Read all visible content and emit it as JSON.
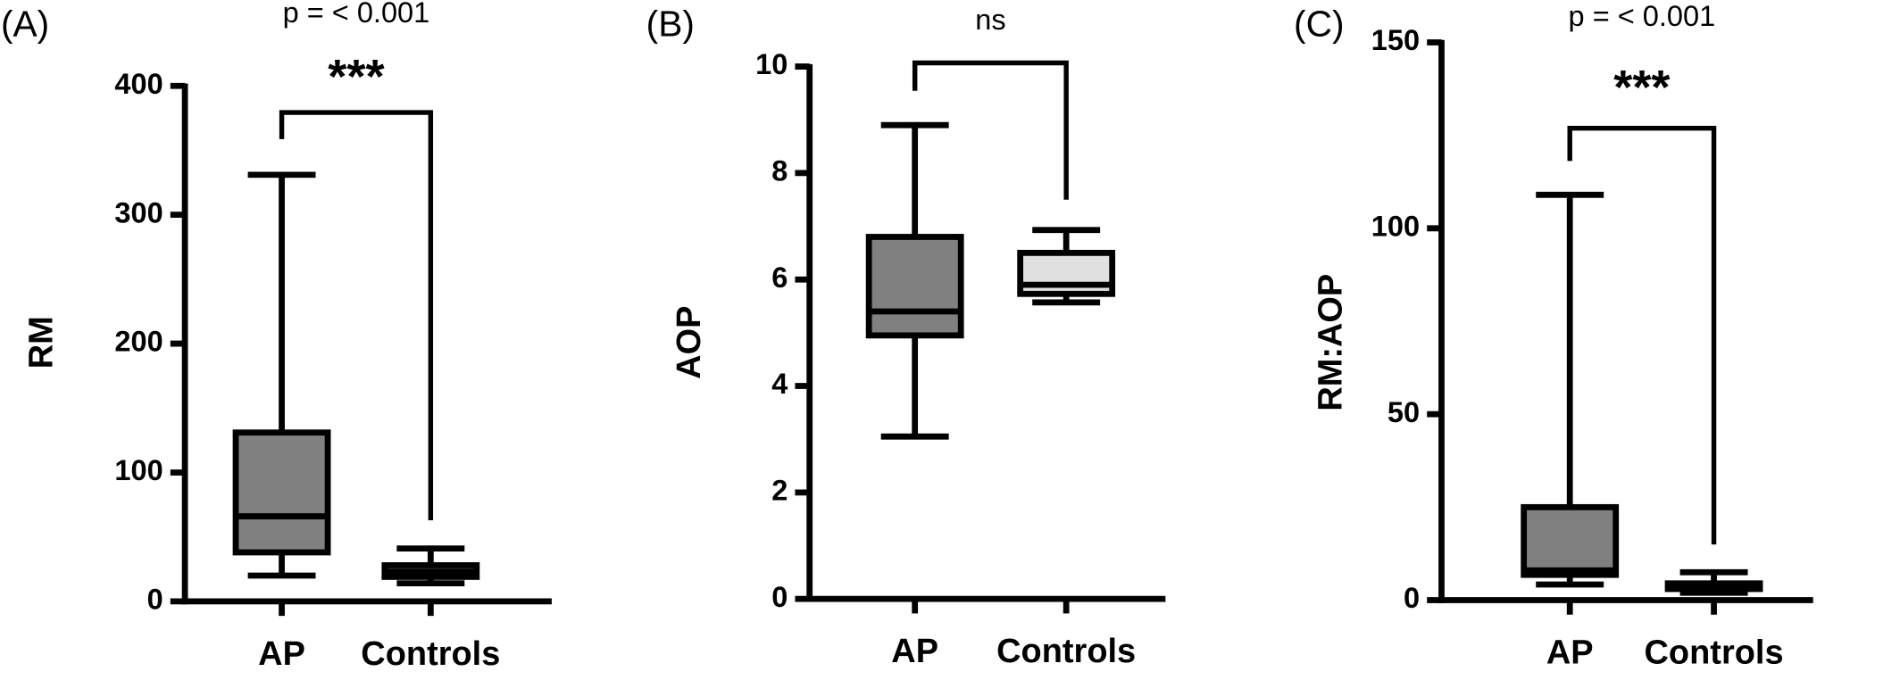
{
  "chart_data": [
    {
      "type": "box",
      "panel": "(A)",
      "annotation": "p = < 0.001",
      "significance": "***",
      "ylabel": "RM",
      "categories": [
        "AP",
        "Controls"
      ],
      "boxes": [
        {
          "min": 20,
          "q1": 38,
          "median": 66,
          "q3": 131,
          "max": 331,
          "color": "#808080"
        },
        {
          "min": 14,
          "q1": 19,
          "median": 23,
          "q3": 28,
          "max": 41,
          "color": "#808080"
        }
      ],
      "ylim": [
        0,
        400
      ],
      "yticks": [
        0,
        100,
        200,
        300,
        400
      ]
    },
    {
      "type": "box",
      "panel": "(B)",
      "annotation": "ns",
      "ylabel": "AOP",
      "categories": [
        "AP",
        "Controls"
      ],
      "boxes": [
        {
          "min": 3.05,
          "q1": 4.95,
          "median": 5.4,
          "q3": 6.8,
          "max": 8.9,
          "color": "#808080"
        },
        {
          "min": 5.57,
          "q1": 5.73,
          "median": 5.9,
          "q3": 6.5,
          "max": 6.93,
          "color": "#e0e0e0"
        }
      ],
      "ylim": [
        0,
        10
      ],
      "yticks": [
        0,
        2,
        4,
        6,
        8,
        10
      ]
    },
    {
      "type": "box",
      "panel": "(C)",
      "annotation": "p = < 0.001",
      "significance": "***",
      "ylabel": "RM:AOP",
      "categories": [
        "AP",
        "Controls"
      ],
      "boxes": [
        {
          "min": 4.2,
          "q1": 6.8,
          "median": 8,
          "q3": 25,
          "max": 109,
          "color": "#808080"
        },
        {
          "min": 2,
          "q1": 3,
          "median": 4,
          "q3": 4.5,
          "max": 7.5,
          "color": "#808080"
        }
      ],
      "ylim": [
        0,
        150
      ],
      "yticks": [
        0,
        50,
        100,
        150
      ]
    }
  ]
}
